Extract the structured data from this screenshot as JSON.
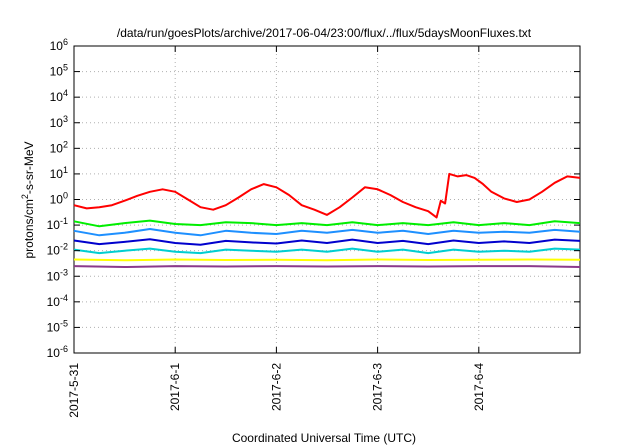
{
  "chart_data": {
    "type": "line",
    "title": "/data/run/goesPlots/archive/2017-06-04/23:00/flux/../flux/5daysMoonFluxes.txt",
    "xlabel": "Coordinated Universal Time (UTC)",
    "ylabel_parts": {
      "pre": "protons/cm",
      "sup": "2",
      "post": "-s-sr-MeV"
    },
    "y_scale": "log",
    "ylim": [
      1e-06,
      1000000.0
    ],
    "y_ticks": [
      {
        "base": "10",
        "exp": "-6",
        "value": 1e-06
      },
      {
        "base": "10",
        "exp": "-5",
        "value": 1e-05
      },
      {
        "base": "10",
        "exp": "-4",
        "value": 0.0001
      },
      {
        "base": "10",
        "exp": "-3",
        "value": 0.001
      },
      {
        "base": "10",
        "exp": "-2",
        "value": 0.01
      },
      {
        "base": "10",
        "exp": "-1",
        "value": 0.1
      },
      {
        "base": "10",
        "exp": "0",
        "value": 1
      },
      {
        "base": "10",
        "exp": "1",
        "value": 10
      },
      {
        "base": "10",
        "exp": "2",
        "value": 100
      },
      {
        "base": "10",
        "exp": "3",
        "value": 1000
      },
      {
        "base": "10",
        "exp": "4",
        "value": 10000
      },
      {
        "base": "10",
        "exp": "5",
        "value": 100000
      },
      {
        "base": "10",
        "exp": "6",
        "value": 1000000
      }
    ],
    "xlim": [
      "2017-05-31",
      "2017-06-05"
    ],
    "x_ticks": [
      {
        "label": "2017-5-31",
        "value": "2017-05-31"
      },
      {
        "label": "2017-6-1",
        "value": "2017-06-01"
      },
      {
        "label": "2017-6-2",
        "value": "2017-06-02"
      },
      {
        "label": "2017-6-3",
        "value": "2017-06-03"
      },
      {
        "label": "2017-6-4",
        "value": "2017-06-04"
      }
    ],
    "grid": true,
    "series": [
      {
        "color": "#ff0000",
        "points": [
          [
            "2017-05-31 00:00",
            0.6
          ],
          [
            "2017-05-31 03:00",
            0.45
          ],
          [
            "2017-05-31 06:00",
            0.5
          ],
          [
            "2017-05-31 09:00",
            0.6
          ],
          [
            "2017-05-31 12:00",
            0.9
          ],
          [
            "2017-05-31 15:00",
            1.4
          ],
          [
            "2017-05-31 18:00",
            2.0
          ],
          [
            "2017-05-31 21:00",
            2.5
          ],
          [
            "2017-06-01 00:00",
            2.0
          ],
          [
            "2017-06-01 03:00",
            1.0
          ],
          [
            "2017-06-01 06:00",
            0.5
          ],
          [
            "2017-06-01 09:00",
            0.4
          ],
          [
            "2017-06-01 12:00",
            0.6
          ],
          [
            "2017-06-01 15:00",
            1.2
          ],
          [
            "2017-06-01 18:00",
            2.5
          ],
          [
            "2017-06-01 21:00",
            4.0
          ],
          [
            "2017-06-02 00:00",
            3.0
          ],
          [
            "2017-06-02 03:00",
            1.5
          ],
          [
            "2017-06-02 06:00",
            0.6
          ],
          [
            "2017-06-02 09:00",
            0.4
          ],
          [
            "2017-06-02 12:00",
            0.25
          ],
          [
            "2017-06-02 15:00",
            0.5
          ],
          [
            "2017-06-02 18:00",
            1.2
          ],
          [
            "2017-06-02 21:00",
            3.0
          ],
          [
            "2017-06-03 00:00",
            2.5
          ],
          [
            "2017-06-03 03:00",
            1.5
          ],
          [
            "2017-06-03 06:00",
            0.8
          ],
          [
            "2017-06-03 09:00",
            0.5
          ],
          [
            "2017-06-03 12:00",
            0.35
          ],
          [
            "2017-06-03 14:00",
            0.2
          ],
          [
            "2017-06-03 15:00",
            0.9
          ],
          [
            "2017-06-03 16:00",
            0.7
          ],
          [
            "2017-06-03 17:00",
            10.0
          ],
          [
            "2017-06-03 19:00",
            8.0
          ],
          [
            "2017-06-03 21:00",
            9.0
          ],
          [
            "2017-06-03 23:00",
            7.0
          ],
          [
            "2017-06-04 01:00",
            4.0
          ],
          [
            "2017-06-04 03:00",
            2.0
          ],
          [
            "2017-06-04 06:00",
            1.1
          ],
          [
            "2017-06-04 09:00",
            0.8
          ],
          [
            "2017-06-04 12:00",
            1.0
          ],
          [
            "2017-06-04 15:00",
            2.0
          ],
          [
            "2017-06-04 18:00",
            4.5
          ],
          [
            "2017-06-04 21:00",
            8.0
          ],
          [
            "2017-06-05 00:00",
            7.0
          ]
        ]
      },
      {
        "color": "#00ee00",
        "points": [
          [
            "2017-05-31 00:00",
            0.14
          ],
          [
            "2017-05-31 06:00",
            0.09
          ],
          [
            "2017-05-31 12:00",
            0.12
          ],
          [
            "2017-05-31 18:00",
            0.15
          ],
          [
            "2017-06-01 00:00",
            0.11
          ],
          [
            "2017-06-01 06:00",
            0.1
          ],
          [
            "2017-06-01 12:00",
            0.13
          ],
          [
            "2017-06-01 18:00",
            0.12
          ],
          [
            "2017-06-02 00:00",
            0.1
          ],
          [
            "2017-06-02 06:00",
            0.12
          ],
          [
            "2017-06-02 12:00",
            0.1
          ],
          [
            "2017-06-02 18:00",
            0.13
          ],
          [
            "2017-06-03 00:00",
            0.1
          ],
          [
            "2017-06-03 06:00",
            0.12
          ],
          [
            "2017-06-03 12:00",
            0.1
          ],
          [
            "2017-06-03 18:00",
            0.13
          ],
          [
            "2017-06-04 00:00",
            0.1
          ],
          [
            "2017-06-04 06:00",
            0.12
          ],
          [
            "2017-06-04 12:00",
            0.1
          ],
          [
            "2017-06-04 18:00",
            0.14
          ],
          [
            "2017-06-05 00:00",
            0.12
          ]
        ]
      },
      {
        "color": "#1e90ff",
        "points": [
          [
            "2017-05-31 00:00",
            0.06
          ],
          [
            "2017-05-31 06:00",
            0.04
          ],
          [
            "2017-05-31 12:00",
            0.05
          ],
          [
            "2017-05-31 18:00",
            0.07
          ],
          [
            "2017-06-01 00:00",
            0.05
          ],
          [
            "2017-06-01 06:00",
            0.04
          ],
          [
            "2017-06-01 12:00",
            0.06
          ],
          [
            "2017-06-01 18:00",
            0.05
          ],
          [
            "2017-06-02 00:00",
            0.045
          ],
          [
            "2017-06-02 06:00",
            0.06
          ],
          [
            "2017-06-02 12:00",
            0.05
          ],
          [
            "2017-06-02 18:00",
            0.065
          ],
          [
            "2017-06-03 00:00",
            0.05
          ],
          [
            "2017-06-03 06:00",
            0.06
          ],
          [
            "2017-06-03 12:00",
            0.045
          ],
          [
            "2017-06-03 18:00",
            0.06
          ],
          [
            "2017-06-04 00:00",
            0.05
          ],
          [
            "2017-06-04 06:00",
            0.055
          ],
          [
            "2017-06-04 12:00",
            0.05
          ],
          [
            "2017-06-04 18:00",
            0.065
          ],
          [
            "2017-06-05 00:00",
            0.055
          ]
        ]
      },
      {
        "color": "#0000cd",
        "points": [
          [
            "2017-05-31 00:00",
            0.025
          ],
          [
            "2017-05-31 06:00",
            0.018
          ],
          [
            "2017-05-31 12:00",
            0.022
          ],
          [
            "2017-05-31 18:00",
            0.028
          ],
          [
            "2017-06-01 00:00",
            0.02
          ],
          [
            "2017-06-01 06:00",
            0.017
          ],
          [
            "2017-06-01 12:00",
            0.024
          ],
          [
            "2017-06-01 18:00",
            0.021
          ],
          [
            "2017-06-02 00:00",
            0.019
          ],
          [
            "2017-06-02 06:00",
            0.025
          ],
          [
            "2017-06-02 12:00",
            0.02
          ],
          [
            "2017-06-02 18:00",
            0.027
          ],
          [
            "2017-06-03 00:00",
            0.02
          ],
          [
            "2017-06-03 06:00",
            0.024
          ],
          [
            "2017-06-03 12:00",
            0.018
          ],
          [
            "2017-06-03 18:00",
            0.025
          ],
          [
            "2017-06-04 00:00",
            0.02
          ],
          [
            "2017-06-04 06:00",
            0.023
          ],
          [
            "2017-06-04 12:00",
            0.02
          ],
          [
            "2017-06-04 18:00",
            0.027
          ],
          [
            "2017-06-05 00:00",
            0.024
          ]
        ]
      },
      {
        "color": "#00ced1",
        "points": [
          [
            "2017-05-31 00:00",
            0.011
          ],
          [
            "2017-05-31 06:00",
            0.008
          ],
          [
            "2017-05-31 12:00",
            0.01
          ],
          [
            "2017-05-31 18:00",
            0.012
          ],
          [
            "2017-06-01 00:00",
            0.009
          ],
          [
            "2017-06-01 06:00",
            0.008
          ],
          [
            "2017-06-01 12:00",
            0.011
          ],
          [
            "2017-06-01 18:00",
            0.01
          ],
          [
            "2017-06-02 00:00",
            0.009
          ],
          [
            "2017-06-02 06:00",
            0.011
          ],
          [
            "2017-06-02 12:00",
            0.009
          ],
          [
            "2017-06-02 18:00",
            0.012
          ],
          [
            "2017-06-03 00:00",
            0.009
          ],
          [
            "2017-06-03 06:00",
            0.011
          ],
          [
            "2017-06-03 12:00",
            0.008
          ],
          [
            "2017-06-03 18:00",
            0.011
          ],
          [
            "2017-06-04 00:00",
            0.009
          ],
          [
            "2017-06-04 06:00",
            0.01
          ],
          [
            "2017-06-04 12:00",
            0.009
          ],
          [
            "2017-06-04 18:00",
            0.012
          ],
          [
            "2017-06-05 00:00",
            0.011
          ]
        ]
      },
      {
        "color": "#ffff00",
        "points": [
          [
            "2017-05-31 00:00",
            0.0045
          ],
          [
            "2017-05-31 12:00",
            0.0042
          ],
          [
            "2017-06-01 00:00",
            0.0045
          ],
          [
            "2017-06-01 12:00",
            0.0043
          ],
          [
            "2017-06-02 00:00",
            0.0044
          ],
          [
            "2017-06-02 12:00",
            0.0042
          ],
          [
            "2017-06-03 00:00",
            0.0045
          ],
          [
            "2017-06-03 12:00",
            0.0043
          ],
          [
            "2017-06-04 00:00",
            0.0044
          ],
          [
            "2017-06-04 12:00",
            0.0045
          ],
          [
            "2017-06-05 00:00",
            0.0044
          ]
        ]
      },
      {
        "color": "#8b3a8b",
        "points": [
          [
            "2017-05-31 00:00",
            0.0025
          ],
          [
            "2017-05-31 12:00",
            0.0023
          ],
          [
            "2017-06-01 00:00",
            0.0025
          ],
          [
            "2017-06-01 12:00",
            0.0024
          ],
          [
            "2017-06-02 00:00",
            0.0025
          ],
          [
            "2017-06-02 12:00",
            0.0024
          ],
          [
            "2017-06-03 00:00",
            0.0025
          ],
          [
            "2017-06-03 12:00",
            0.0024
          ],
          [
            "2017-06-04 00:00",
            0.0025
          ],
          [
            "2017-06-04 12:00",
            0.0025
          ],
          [
            "2017-06-05 00:00",
            0.0023
          ]
        ]
      }
    ]
  }
}
